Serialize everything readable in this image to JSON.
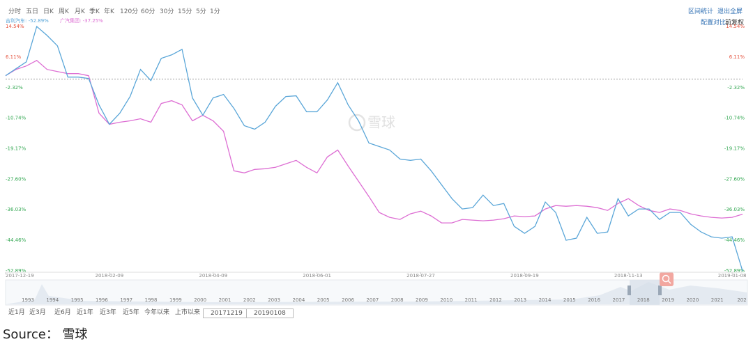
{
  "toolbar": [
    "分时",
    "五日",
    "日K",
    "周K",
    "月K",
    "季K",
    "年K",
    "120分",
    "60分",
    "30分",
    "15分",
    "5分",
    "1分"
  ],
  "toolbar_right": [
    "区间统计",
    "退出全屏"
  ],
  "options": [
    "配置对比",
    "前复权"
  ],
  "watermark": "雪球",
  "chart_data": {
    "type": "line",
    "categories": [
      "2017-12-19",
      null,
      null,
      null,
      null,
      null,
      null,
      null,
      null,
      null,
      "2018-02-09",
      null,
      null,
      null,
      null,
      null,
      null,
      null,
      null,
      null,
      "2018-04-09",
      null,
      null,
      null,
      null,
      null,
      null,
      null,
      null,
      null,
      "2018-06-01",
      null,
      null,
      null,
      null,
      null,
      null,
      null,
      null,
      null,
      "2018-07-27",
      null,
      null,
      null,
      null,
      null,
      null,
      null,
      null,
      null,
      "2018-09-19",
      null,
      null,
      null,
      null,
      null,
      null,
      null,
      null,
      null,
      "2018-11-13",
      null,
      null,
      null,
      null,
      null,
      null,
      null,
      null,
      null,
      "2019-01-08",
      null
    ],
    "series": [
      {
        "name": "吉利汽车: -52.89%",
        "color": "#5aa6d8",
        "values": [
          0.96,
          2.87,
          4.79,
          14.54,
          12.07,
          9.2,
          0.57,
          0.57,
          0.19,
          -7.09,
          -12.45,
          -9.39,
          -4.79,
          2.68,
          -0.38,
          5.75,
          6.7,
          8.24,
          -5.17,
          -9.96,
          -5.17,
          -4.21,
          -8.05,
          -12.84,
          -13.79,
          -11.88,
          -7.47,
          -4.79,
          -4.6,
          -9.0,
          -9.0,
          -5.75,
          -0.96,
          -7.09,
          -11.49,
          -17.62,
          -18.58,
          -19.54,
          -22.03,
          -22.41,
          -22.03,
          -25.29,
          -29.12,
          -32.95,
          -35.82,
          -35.44,
          -31.99,
          -34.87,
          -34.29,
          -40.61,
          -42.53,
          -40.61,
          -33.91,
          -36.78,
          -44.44,
          -43.87,
          -38.12,
          -42.53,
          -42.15,
          -32.95,
          -37.74,
          -35.82,
          -35.82,
          -38.7,
          -36.78,
          -36.78,
          -40.04,
          -42.15,
          -43.49,
          -43.87,
          -43.49,
          -52.89
        ]
      },
      {
        "name": "广汽集团: -37.25%",
        "color": "#dd6ed3",
        "values": [
          0.96,
          2.68,
          3.64,
          5.17,
          2.68,
          2.11,
          1.53,
          1.53,
          0.96,
          -9.39,
          -12.45,
          -11.88,
          -11.49,
          -10.92,
          -11.88,
          -6.7,
          -5.94,
          -7.09,
          -11.49,
          -9.96,
          -11.49,
          -14.37,
          -25.29,
          -25.86,
          -24.9,
          -24.71,
          -24.33,
          -23.37,
          -22.41,
          -24.33,
          -25.86,
          -21.46,
          -19.54,
          -23.95,
          -28.16,
          -32.38,
          -36.78,
          -38.12,
          -38.7,
          -37.16,
          -36.4,
          -37.74,
          -39.66,
          -39.66,
          -38.7,
          -38.89,
          -39.08,
          -38.89,
          -38.51,
          -37.74,
          -37.93,
          -37.74,
          -35.82,
          -34.87,
          -35.06,
          -34.87,
          -35.06,
          -35.44,
          -36.21,
          -34.29,
          -32.95,
          -34.87,
          -36.21,
          -36.78,
          -35.82,
          -36.21,
          -37.16,
          -37.74,
          -38.12,
          -38.31,
          -38.12,
          -37.25
        ]
      }
    ],
    "ylim": [
      -52.89,
      14.54
    ],
    "yticks": [
      {
        "value": 14.54,
        "label": "14.54%"
      },
      {
        "value": 6.11,
        "label": "6.11%"
      },
      {
        "value": -2.32,
        "label": "-2.32%"
      },
      {
        "value": -10.74,
        "label": "-10.74%"
      },
      {
        "value": -19.17,
        "label": "-19.17%"
      },
      {
        "value": -27.6,
        "label": "-27.60%"
      },
      {
        "value": -36.03,
        "label": "-36.03%"
      },
      {
        "value": -44.46,
        "label": "-44.46%"
      },
      {
        "value": -52.89,
        "label": "-52.89%"
      }
    ],
    "reference_line": 0,
    "tick_colors": {
      "up": "#e5533f",
      "down": "#34a853"
    },
    "grid": false
  },
  "navigator_years": [
    "1993",
    "1994",
    "1995",
    "1996",
    "1997",
    "1998",
    "1999",
    "2000",
    "2001",
    "2002",
    "2003",
    "2004",
    "2005",
    "2006",
    "2007",
    "2008",
    "2009",
    "2010",
    "2011",
    "2012",
    "2013",
    "2014",
    "2015",
    "2016",
    "2017",
    "2018",
    "2019",
    "2020",
    "2021",
    "202"
  ],
  "range_buttons": [
    "近1月",
    "近3月",
    "近6月",
    "近1年",
    "近3年",
    "近5年",
    "今年以来",
    "上市以来"
  ],
  "date_range": [
    "20171219",
    "20190108"
  ],
  "source": "Source： 雪球"
}
